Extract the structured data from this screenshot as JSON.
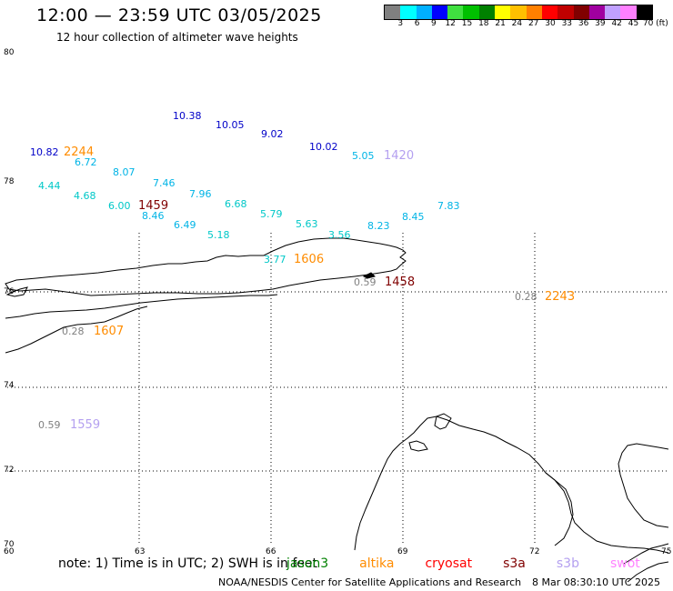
{
  "title": "12:00 — 23:59 UTC 03/05/2025",
  "subtitle": "12 hour collection of altimeter wave heights",
  "colorbar": {
    "colors": [
      "#808080",
      "#00ffff",
      "#00b0ff",
      "#0000ff",
      "#40e040",
      "#00c000",
      "#008000",
      "#ffff00",
      "#ffc000",
      "#ff8000",
      "#ff0000",
      "#c00000",
      "#800000",
      "#a000a0",
      "#c0a0ff",
      "#ff80ff",
      "#000000"
    ],
    "labels": [
      "3",
      "6",
      "9",
      "12",
      "15",
      "18",
      "21",
      "24",
      "27",
      "30",
      "33",
      "36",
      "39",
      "42",
      "45",
      "70 (ft)"
    ]
  },
  "axes": {
    "lat_labels": [
      "80",
      "78",
      "76",
      "74",
      "72",
      "70"
    ],
    "lon_labels": [
      "60",
      "63",
      "66",
      "69",
      "72",
      "75"
    ]
  },
  "swh_points": [
    {
      "text": "10.38",
      "color": "#0000c8"
    },
    {
      "text": "10.05",
      "color": "#0000c8"
    },
    {
      "text": "9.02",
      "color": "#0000c8"
    },
    {
      "text": "10.02",
      "color": "#0000c8"
    },
    {
      "text": "10.82",
      "color": "#0000c8"
    },
    {
      "text": "6.72",
      "color": "#00b4e6"
    },
    {
      "text": "8.07",
      "color": "#00b4e6"
    },
    {
      "text": "7.46",
      "color": "#00b4e6"
    },
    {
      "text": "5.05",
      "color": "#00b4e6"
    },
    {
      "text": "4.44",
      "color": "#00c8c8"
    },
    {
      "text": "4.68",
      "color": "#00c8c8"
    },
    {
      "text": "6.00",
      "color": "#00c8c8"
    },
    {
      "text": "8.46",
      "color": "#00b4e6"
    },
    {
      "text": "7.96",
      "color": "#00b4e6"
    },
    {
      "text": "6.68",
      "color": "#00c8c8"
    },
    {
      "text": "6.49",
      "color": "#00b4e6"
    },
    {
      "text": "5.79",
      "color": "#00c8c8"
    },
    {
      "text": "5.18",
      "color": "#00c8c8"
    },
    {
      "text": "5.63",
      "color": "#00c8c8"
    },
    {
      "text": "3.56",
      "color": "#00c8c8"
    },
    {
      "text": "8.23",
      "color": "#00b4e6"
    },
    {
      "text": "8.45",
      "color": "#00b4e6"
    },
    {
      "text": "7.83",
      "color": "#00b4e6"
    },
    {
      "text": "3.77",
      "color": "#00c8c8"
    },
    {
      "text": "0.59",
      "color": "#808080"
    },
    {
      "text": "0.28",
      "color": "#808080"
    },
    {
      "text": "0.28",
      "color": "#808080"
    },
    {
      "text": "0.59",
      "color": "#808080"
    }
  ],
  "pass_times": [
    {
      "text": "2244",
      "color": "#ff8c00"
    },
    {
      "text": "1420",
      "color": "#b4a0f0"
    },
    {
      "text": "1459",
      "color": "#800000"
    },
    {
      "text": "1606",
      "color": "#ff8c00"
    },
    {
      "text": "1458",
      "color": "#800000"
    },
    {
      "text": "2243",
      "color": "#ff8c00"
    },
    {
      "text": "1607",
      "color": "#ff8c00"
    },
    {
      "text": "1559",
      "color": "#b4a0f0"
    }
  ],
  "note": {
    "prefix": "note:  1) Time is in UTC;  2) SWH is in feet",
    "satellites": [
      {
        "name": "jason3",
        "color": "#008000"
      },
      {
        "name": "altika",
        "color": "#ff8c00"
      },
      {
        "name": "cryosat",
        "color": "#ff0000"
      },
      {
        "name": "s3a",
        "color": "#800000"
      },
      {
        "name": "s3b",
        "color": "#b4a0f0"
      },
      {
        "name": "swot",
        "color": "#ff80ff"
      }
    ]
  },
  "credit": {
    "left": "NOAA/NESDIS Center for Satellite Applications and Research",
    "right": "8 Mar 08:30:10 UTC 2025"
  }
}
